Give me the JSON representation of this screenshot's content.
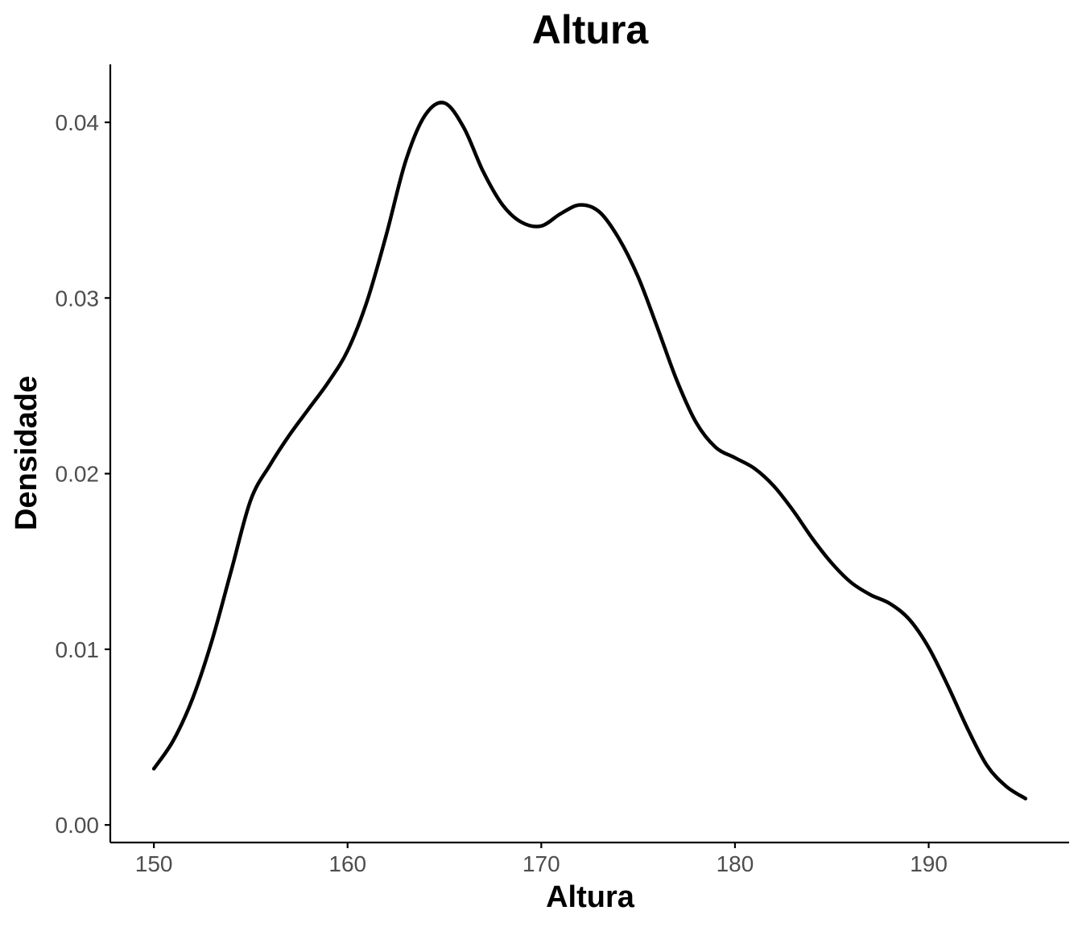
{
  "chart_data": {
    "type": "line",
    "title": "Altura",
    "xlabel": "Altura",
    "ylabel": "Densidade",
    "xlim": [
      147.75,
      197.25
    ],
    "ylim": [
      -0.001,
      0.0433
    ],
    "x_ticks": [
      150,
      160,
      170,
      180,
      190
    ],
    "x_tick_labels": [
      "150",
      "160",
      "170",
      "180",
      "190"
    ],
    "y_ticks": [
      0.0,
      0.01,
      0.02,
      0.03,
      0.04
    ],
    "y_tick_labels": [
      "0.00",
      "0.01",
      "0.02",
      "0.03",
      "0.04"
    ],
    "grid": false,
    "legend": "none",
    "line_color": "#000000",
    "series": [
      {
        "x": [
          150,
          151,
          152,
          153,
          154,
          155,
          156,
          157,
          158,
          159,
          160,
          161,
          162,
          163,
          164,
          165,
          166,
          167,
          168,
          169,
          170,
          171,
          172,
          173,
          174,
          175,
          176,
          177,
          178,
          179,
          180,
          181,
          182,
          183,
          184,
          185,
          186,
          187,
          188,
          189,
          190,
          191,
          192,
          193,
          194,
          195
        ],
        "y": [
          0.0032,
          0.0048,
          0.0072,
          0.0105,
          0.0145,
          0.0185,
          0.0205,
          0.0222,
          0.0237,
          0.0252,
          0.027,
          0.0298,
          0.0336,
          0.0378,
          0.0404,
          0.0411,
          0.0397,
          0.0372,
          0.0353,
          0.0343,
          0.0341,
          0.0348,
          0.0353,
          0.0349,
          0.0334,
          0.0312,
          0.0283,
          0.0253,
          0.0229,
          0.0215,
          0.0209,
          0.0203,
          0.0193,
          0.0179,
          0.0163,
          0.0149,
          0.0138,
          0.0131,
          0.0126,
          0.0117,
          0.0101,
          0.0079,
          0.0055,
          0.0034,
          0.0022,
          0.0015
        ]
      }
    ]
  }
}
